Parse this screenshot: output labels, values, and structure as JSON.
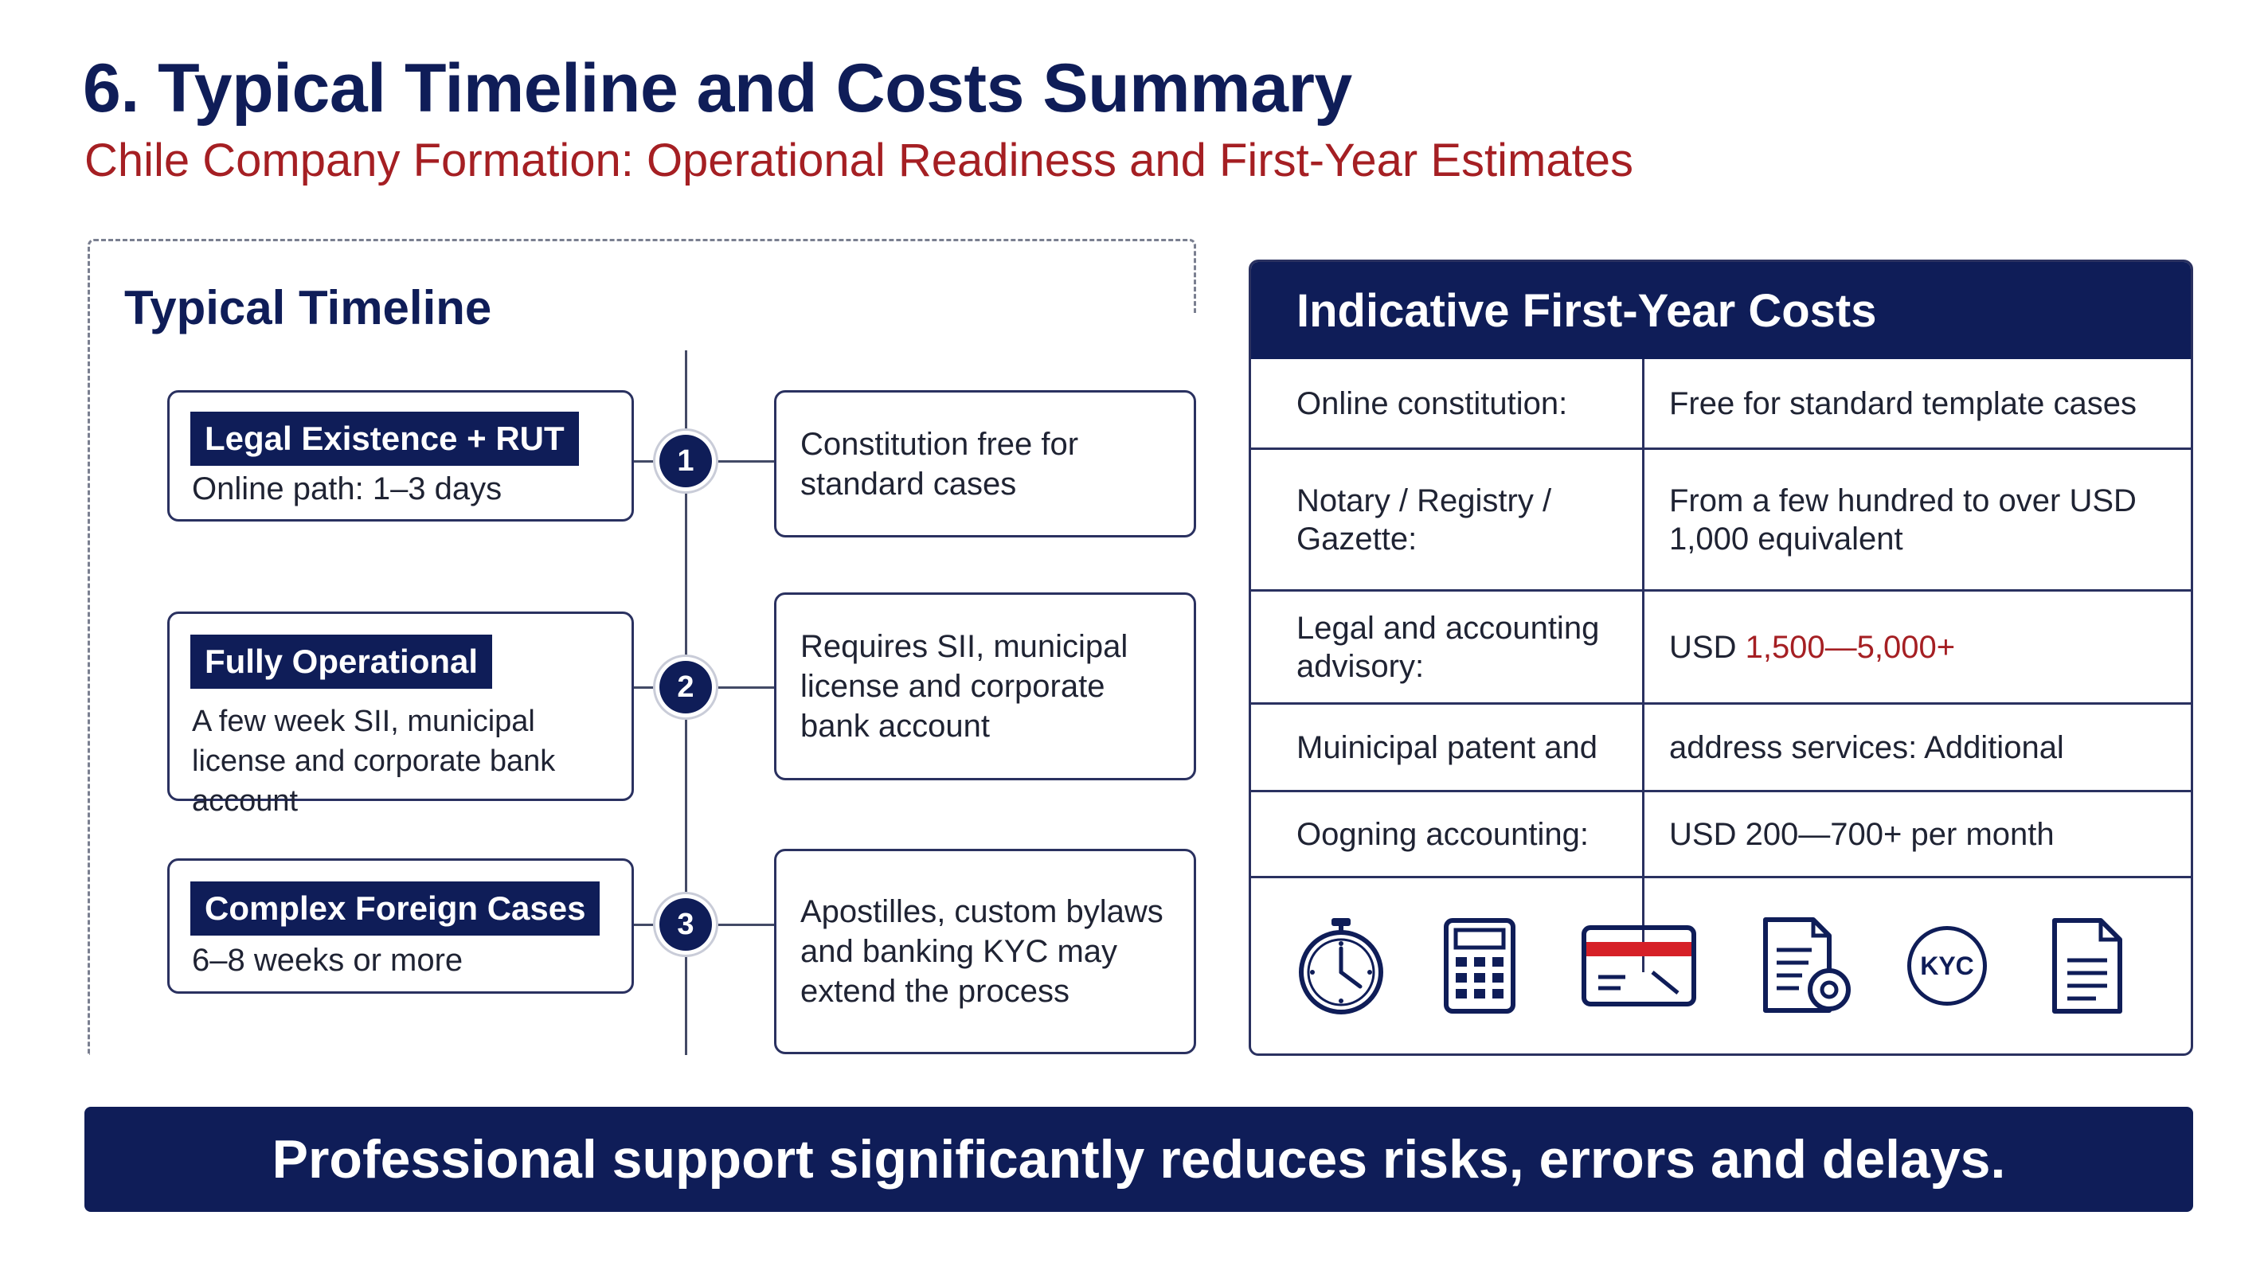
{
  "header": {
    "title": "6. Typical Timeline and Costs Summary",
    "subtitle": "Chile Company Formation: Operational Readiness and First-Year Estimates"
  },
  "timeline": {
    "heading": "Typical Timeline",
    "steps": [
      {
        "number": "1",
        "tag": "Legal Existence + RUT",
        "desc": "Online path: 1–3 days",
        "note": "Constitution free for standard cases"
      },
      {
        "number": "2",
        "tag": "Fully Operational",
        "desc": "A few week SII, municipal license and corporate bank account",
        "note": "Requires SII, municipal license and corporate bank account"
      },
      {
        "number": "3",
        "tag": "Complex Foreign Cases",
        "desc": "6–8 weeks or more",
        "note": "Apostilles, custom bylaws and banking KYC may extend the process"
      }
    ]
  },
  "costs": {
    "heading": "Indicative First-Year Costs",
    "rows": [
      {
        "label": "Online constitution:",
        "value": "Free for standard template cases"
      },
      {
        "label": "Notary / Registry / Gazette:",
        "value": "From a few hundred to over USD 1,000 equivalent"
      },
      {
        "label": "Legal and accounting advisory:",
        "value_prefix": "USD ",
        "value_highlight": "1,500—5,000+"
      },
      {
        "label": "Muinicipal patent and",
        "value": "address services: Additional"
      },
      {
        "label": "Oogning accounting:",
        "value": "USD 200—700+ per month"
      }
    ],
    "icons": [
      "stopwatch-icon",
      "calculator-icon",
      "credit-card-icon",
      "document-gear-icon",
      "kyc-badge-icon",
      "document-icon"
    ],
    "icon_text": {
      "kyc": "KYC"
    },
    "colors": {
      "navy": "#0f1d58",
      "accent_red": "#a51f23",
      "card_stripe": "#d62027"
    }
  },
  "footer": {
    "message": "Professional support significantly reduces risks, errors and delays."
  }
}
